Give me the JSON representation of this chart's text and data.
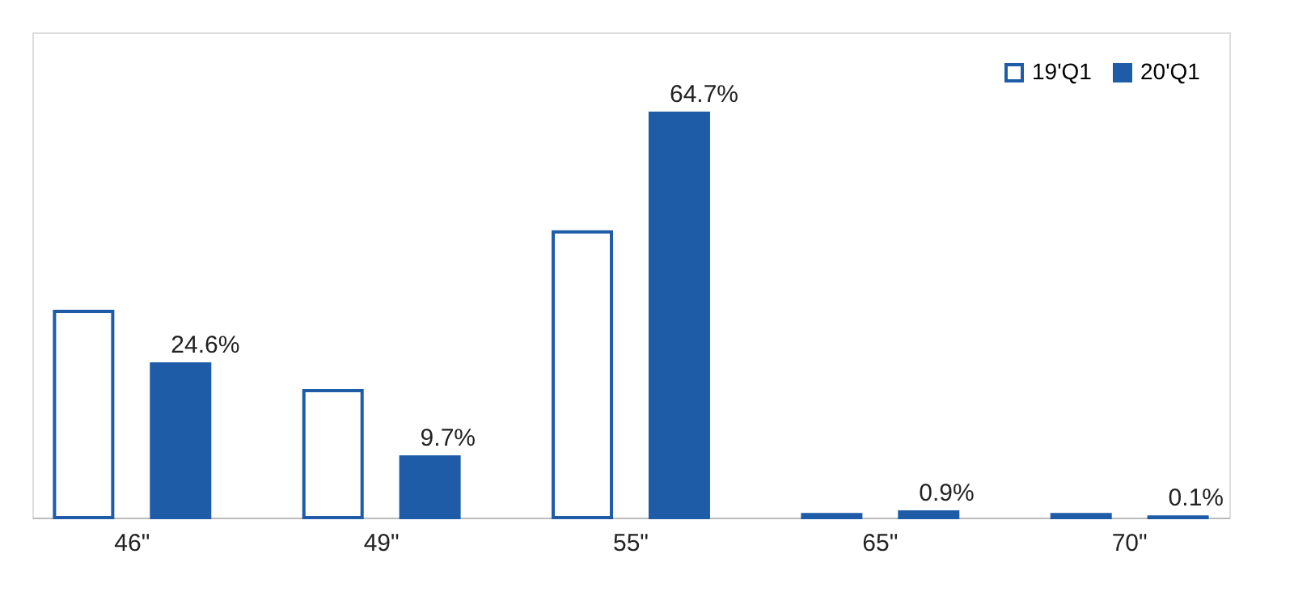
{
  "chart_data": {
    "type": "bar",
    "categories": [
      "46\"",
      "49\"",
      "55\"",
      "65\"",
      "70\""
    ],
    "series": [
      {
        "name": "19'Q1",
        "color": "#1f5ca8",
        "values": [
          33.0,
          20.3,
          45.7,
          0.5,
          0.5
        ]
      },
      {
        "name": "20'Q1",
        "color": "#1f5ca8",
        "values": [
          24.6,
          9.7,
          64.7,
          0.9,
          0.1
        ],
        "value_labels": [
          "24.6%",
          "9.7%",
          "64.7%",
          "0.9%",
          "0.1%"
        ]
      }
    ],
    "legend": "top right",
    "grid": false
  }
}
